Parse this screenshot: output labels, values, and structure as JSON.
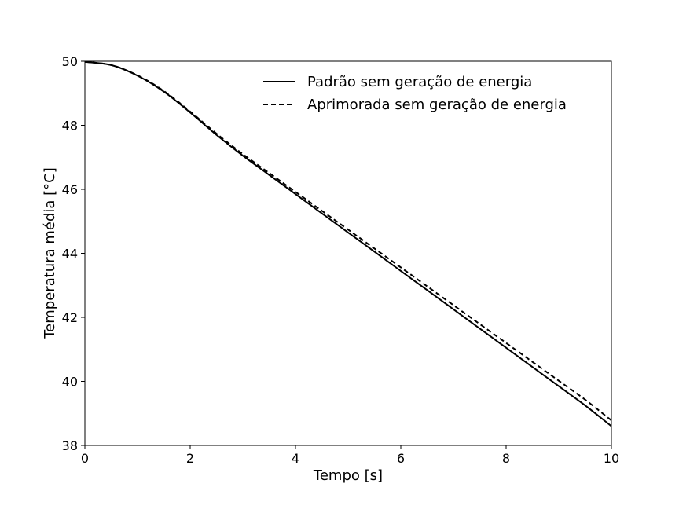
{
  "chart_data": {
    "type": "line",
    "title": "",
    "xlabel": "Tempo [s]",
    "ylabel": "Temperatura média [°C]",
    "xlim": [
      0,
      10
    ],
    "ylim": [
      38,
      50
    ],
    "xticks": [
      0,
      2,
      4,
      6,
      8,
      10
    ],
    "yticks": [
      38,
      40,
      42,
      44,
      46,
      48,
      50
    ],
    "grid": false,
    "legend_position": "top-right",
    "series": [
      {
        "name": "Padrão sem geração de energia",
        "style": "solid",
        "color": "#000000",
        "x": [
          0,
          0.5,
          1,
          1.5,
          2,
          2.5,
          3,
          3.5,
          4,
          4.5,
          5,
          5.5,
          6,
          6.5,
          7,
          7.5,
          8,
          8.5,
          9,
          9.5,
          10
        ],
        "y": [
          49.98,
          49.88,
          49.55,
          49.05,
          48.4,
          47.7,
          47.05,
          46.45,
          45.85,
          45.25,
          44.65,
          44.05,
          43.45,
          42.85,
          42.25,
          41.65,
          41.05,
          40.45,
          39.85,
          39.25,
          38.6
        ]
      },
      {
        "name": "Aprimorada sem geração de energia",
        "style": "dashed",
        "color": "#000000",
        "x": [
          0,
          0.5,
          1,
          1.5,
          2,
          2.5,
          3,
          3.5,
          4,
          4.5,
          5,
          5.5,
          6,
          6.5,
          7,
          7.5,
          8,
          8.5,
          9,
          9.5,
          10
        ],
        "y": [
          49.98,
          49.88,
          49.56,
          49.07,
          48.43,
          47.74,
          47.1,
          46.51,
          45.92,
          45.33,
          44.74,
          44.15,
          43.56,
          42.97,
          42.38,
          41.79,
          41.2,
          40.61,
          40.02,
          39.43,
          38.78
        ]
      }
    ]
  }
}
